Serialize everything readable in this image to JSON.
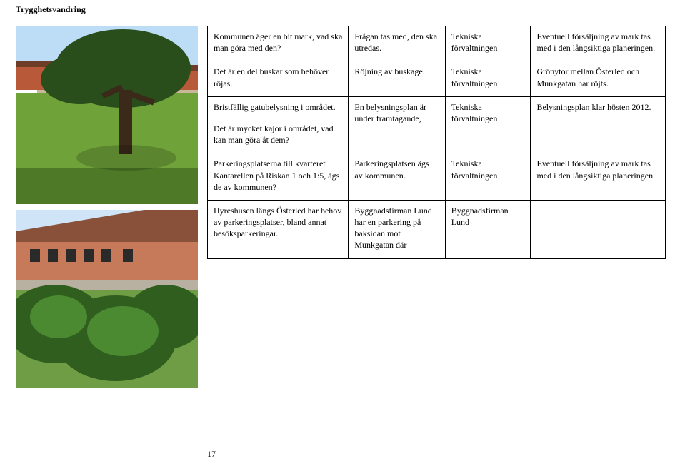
{
  "header": "Trygghetsvandring",
  "page_number": "17",
  "rows": [
    {
      "c1": [
        "Kommunen äger en bit mark, vad ska man göra med den?"
      ],
      "c2": [
        "Frågan tas med, den ska utredas."
      ],
      "c3": [
        "Tekniska förvaltningen"
      ],
      "c4": [
        "Eventuell försäljning av mark tas med i den långsiktiga planeringen."
      ]
    },
    {
      "c1": [
        "Det är en del buskar som behöver röjas."
      ],
      "c2": [
        "Röjning av buskage."
      ],
      "c3": [
        "Tekniska förvaltningen"
      ],
      "c4": [
        "Grönytor mellan Österled och Munkgatan har röjts."
      ]
    },
    {
      "c1": [
        "Bristfällig gatubelysning i området.",
        "Det är mycket kajor i området, vad kan man göra åt dem?"
      ],
      "c2": [
        "En belysningsplan är under framtagande,"
      ],
      "c3": [
        "Tekniska förvaltningen"
      ],
      "c4": [
        "Belysningsplan klar hösten 2012."
      ]
    },
    {
      "c1": [
        "Parkeringsplatserna till kvarteret Kantarellen på Riskan 1 och 1:5, ägs de av kommunen?"
      ],
      "c2": [
        "Parkeringsplatsen ägs av kommunen."
      ],
      "c3": [
        "Tekniska förvaltningen"
      ],
      "c4": [
        "Eventuell försäljning av mark tas med i den långsiktiga planeringen."
      ]
    },
    {
      "c1": [
        "Hyreshusen längs Österled har behov av parkeringsplatser, bland annat besöksparkeringar."
      ],
      "c2": [
        "Byggnadsfirman Lund har en parkering på baksidan mot Munkgatan där"
      ],
      "c3": [
        "Byggnadsfirman Lund"
      ],
      "c4": [
        ""
      ]
    }
  ],
  "photo1": {
    "sky": "#bcddf5",
    "tree_foliage": "#2a4d1c",
    "tree_trunk": "#3b2a1a",
    "grass": "#6fa33a",
    "grass_dark": "#4e7a27",
    "building": "#b85a3a",
    "building_roof": "#6e3d28",
    "path": "#c9b79a"
  },
  "photo2": {
    "sky": "#cfe4f7",
    "building": "#c77a5a",
    "building_roof": "#7a4531",
    "roof_tile": "#8a513a",
    "bush": "#2f5e1e",
    "bush_light": "#4c8a32",
    "grass": "#6e9d45",
    "path": "#b8b0a0"
  }
}
